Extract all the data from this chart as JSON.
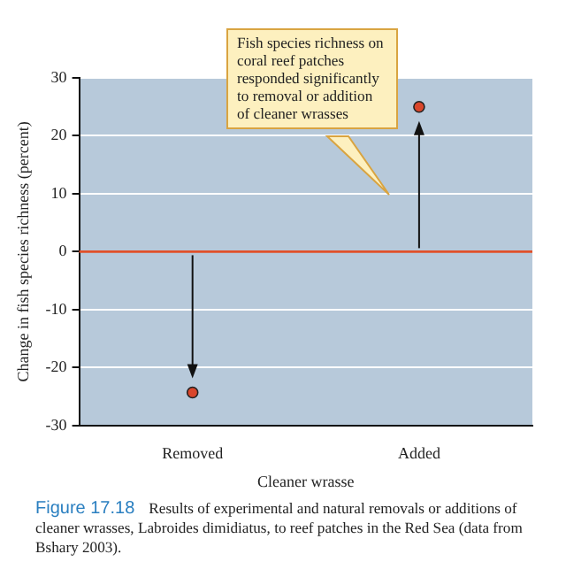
{
  "chart_data": {
    "type": "scatter",
    "categories": [
      "Removed",
      "Added"
    ],
    "values": [
      -24.3,
      25
    ],
    "color": "#d9462b",
    "ylim": [
      -30,
      30
    ],
    "yticks": [
      -30,
      -20,
      -10,
      0,
      10,
      20,
      30
    ],
    "xlabel": "Cleaner wrasse",
    "ylabel": "Change in fish species richness (percent)",
    "grid": "y",
    "marker": "circle",
    "ref_lines": [
      {
        "axis": "y",
        "value": 0,
        "color": "#e0502a"
      }
    ],
    "annotations": [
      "Fish species richness on coral reef patches responded significantly to removal or addition of cleaner wrasses",
      "Figure 17.18",
      "Results of experimental and natural removals or additions of cleaner wrasses, Labroides dimidiatus, to reef patches in the Red Sea (data from Bshary 2003)."
    ]
  }
}
